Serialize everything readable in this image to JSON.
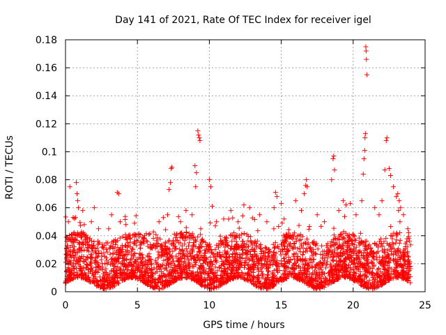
{
  "chart_data": {
    "type": "scatter",
    "title": "Day 141 of 2021, Rate Of TEC Index for receiver igel",
    "xlabel": "GPS time / hours",
    "ylabel": "ROTI / TECUs",
    "xlim": [
      0,
      25
    ],
    "ylim": [
      0,
      0.18
    ],
    "xticks": [
      0,
      5,
      10,
      15,
      20,
      25
    ],
    "xtick_labels": [
      "0",
      "5",
      "10",
      "15",
      "20",
      "25"
    ],
    "yticks": [
      0,
      0.02,
      0.04,
      0.06,
      0.08,
      0.1,
      0.12,
      0.14,
      0.16,
      0.18
    ],
    "ytick_labels": [
      "0",
      "0.02",
      "0.04",
      "0.06",
      "0.08",
      "0.1",
      "0.12",
      "0.14",
      "0.16",
      "0.18"
    ],
    "grid": true,
    "marker": "+",
    "color": "#ff0000",
    "data_range": {
      "x_min": 0,
      "x_max": 24,
      "baseline_min": 0.002,
      "baseline_max": 0.035
    },
    "series": [
      {
        "name": "ROTI",
        "outliers": [
          {
            "x": 0.1,
            "y": 0.036
          },
          {
            "x": 0.2,
            "y": 0.05
          },
          {
            "x": 0.3,
            "y": 0.075
          },
          {
            "x": 0.7,
            "y": 0.053
          },
          {
            "x": 0.75,
            "y": 0.078
          },
          {
            "x": 0.8,
            "y": 0.07
          },
          {
            "x": 0.85,
            "y": 0.065
          },
          {
            "x": 0.9,
            "y": 0.06
          },
          {
            "x": 1.2,
            "y": 0.058
          },
          {
            "x": 1.3,
            "y": 0.048
          },
          {
            "x": 1.8,
            "y": 0.05
          },
          {
            "x": 2.0,
            "y": 0.06
          },
          {
            "x": 2.3,
            "y": 0.045
          },
          {
            "x": 3.0,
            "y": 0.045
          },
          {
            "x": 3.2,
            "y": 0.055
          },
          {
            "x": 3.6,
            "y": 0.071
          },
          {
            "x": 3.7,
            "y": 0.07
          },
          {
            "x": 3.8,
            "y": 0.05
          },
          {
            "x": 4.2,
            "y": 0.048
          },
          {
            "x": 4.8,
            "y": 0.049
          },
          {
            "x": 5.5,
            "y": 0.04
          },
          {
            "x": 6.5,
            "y": 0.05
          },
          {
            "x": 6.8,
            "y": 0.053
          },
          {
            "x": 7.1,
            "y": 0.055
          },
          {
            "x": 7.2,
            "y": 0.073
          },
          {
            "x": 7.3,
            "y": 0.078
          },
          {
            "x": 7.35,
            "y": 0.088
          },
          {
            "x": 7.4,
            "y": 0.089
          },
          {
            "x": 8.0,
            "y": 0.05
          },
          {
            "x": 8.8,
            "y": 0.055
          },
          {
            "x": 9.0,
            "y": 0.09
          },
          {
            "x": 9.05,
            "y": 0.075
          },
          {
            "x": 9.1,
            "y": 0.085
          },
          {
            "x": 9.2,
            "y": 0.115
          },
          {
            "x": 9.25,
            "y": 0.112
          },
          {
            "x": 9.3,
            "y": 0.11
          },
          {
            "x": 9.35,
            "y": 0.108
          },
          {
            "x": 9.4,
            "y": 0.045
          },
          {
            "x": 10.0,
            "y": 0.08
          },
          {
            "x": 10.1,
            "y": 0.075
          },
          {
            "x": 10.2,
            "y": 0.061
          },
          {
            "x": 10.5,
            "y": 0.05
          },
          {
            "x": 11.0,
            "y": 0.052
          },
          {
            "x": 11.5,
            "y": 0.058
          },
          {
            "x": 12.0,
            "y": 0.05
          },
          {
            "x": 12.4,
            "y": 0.062
          },
          {
            "x": 12.8,
            "y": 0.06
          },
          {
            "x": 13.5,
            "y": 0.055
          },
          {
            "x": 14.0,
            "y": 0.05
          },
          {
            "x": 14.5,
            "y": 0.06
          },
          {
            "x": 14.6,
            "y": 0.071
          },
          {
            "x": 14.7,
            "y": 0.068
          },
          {
            "x": 15.0,
            "y": 0.063
          },
          {
            "x": 15.2,
            "y": 0.052
          },
          {
            "x": 16.0,
            "y": 0.065
          },
          {
            "x": 16.4,
            "y": 0.058
          },
          {
            "x": 16.6,
            "y": 0.07
          },
          {
            "x": 16.7,
            "y": 0.076
          },
          {
            "x": 16.75,
            "y": 0.08
          },
          {
            "x": 16.8,
            "y": 0.075
          },
          {
            "x": 17.5,
            "y": 0.055
          },
          {
            "x": 18.0,
            "y": 0.05
          },
          {
            "x": 18.5,
            "y": 0.08
          },
          {
            "x": 18.6,
            "y": 0.095
          },
          {
            "x": 18.65,
            "y": 0.097
          },
          {
            "x": 18.7,
            "y": 0.087
          },
          {
            "x": 19.0,
            "y": 0.058
          },
          {
            "x": 19.3,
            "y": 0.065
          },
          {
            "x": 19.5,
            "y": 0.062
          },
          {
            "x": 19.8,
            "y": 0.063
          },
          {
            "x": 20.2,
            "y": 0.055
          },
          {
            "x": 20.6,
            "y": 0.065
          },
          {
            "x": 20.7,
            "y": 0.084
          },
          {
            "x": 20.75,
            "y": 0.095
          },
          {
            "x": 20.8,
            "y": 0.101
          },
          {
            "x": 20.82,
            "y": 0.11
          },
          {
            "x": 20.85,
            "y": 0.113
          },
          {
            "x": 20.88,
            "y": 0.175
          },
          {
            "x": 20.9,
            "y": 0.172
          },
          {
            "x": 20.92,
            "y": 0.166
          },
          {
            "x": 20.95,
            "y": 0.155
          },
          {
            "x": 21.5,
            "y": 0.06
          },
          {
            "x": 21.8,
            "y": 0.055
          },
          {
            "x": 22.0,
            "y": 0.065
          },
          {
            "x": 22.2,
            "y": 0.087
          },
          {
            "x": 22.3,
            "y": 0.108
          },
          {
            "x": 22.35,
            "y": 0.11
          },
          {
            "x": 22.5,
            "y": 0.088
          },
          {
            "x": 22.6,
            "y": 0.083
          },
          {
            "x": 22.8,
            "y": 0.075
          },
          {
            "x": 23.0,
            "y": 0.068
          },
          {
            "x": 23.1,
            "y": 0.07
          },
          {
            "x": 23.2,
            "y": 0.065
          },
          {
            "x": 23.3,
            "y": 0.06
          },
          {
            "x": 23.5,
            "y": 0.055
          },
          {
            "x": 23.8,
            "y": 0.045
          }
        ]
      }
    ]
  }
}
